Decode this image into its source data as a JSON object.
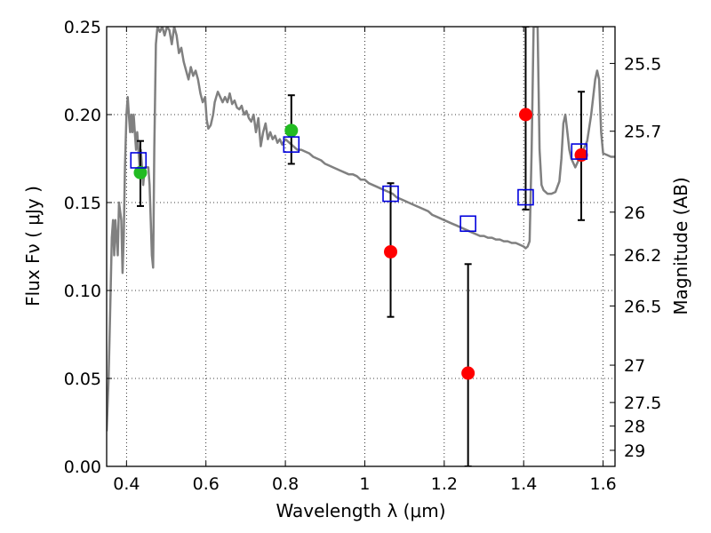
{
  "chart_data": {
    "type": "scatter",
    "xlabel": "Wavelength  λ (μm)",
    "ylabel": "Flux  Fν  ( μJy )",
    "y2label": "Magnitude (AB)",
    "xlim": [
      0.35,
      1.63
    ],
    "ylim": [
      0.0,
      0.25
    ],
    "grid": true,
    "x_ticks": [
      {
        "value": 0.4,
        "label": "0.4"
      },
      {
        "value": 0.6,
        "label": "0.6"
      },
      {
        "value": 0.8,
        "label": "0.8"
      },
      {
        "value": 1.0,
        "label": "1"
      },
      {
        "value": 1.2,
        "label": "1.2"
      },
      {
        "value": 1.4,
        "label": "1.4"
      },
      {
        "value": 1.6,
        "label": "1.6"
      }
    ],
    "y_ticks": [
      {
        "value": 0.0,
        "label": "0.00"
      },
      {
        "value": 0.05,
        "label": "0.05"
      },
      {
        "value": 0.1,
        "label": "0.10"
      },
      {
        "value": 0.15,
        "label": "0.15"
      },
      {
        "value": 0.2,
        "label": "0.20"
      },
      {
        "value": 0.25,
        "label": "0.25"
      }
    ],
    "y2_ticks": [
      {
        "mag": 25.5,
        "label": "25.5"
      },
      {
        "mag": 25.7,
        "label": "25.7"
      },
      {
        "mag": 26,
        "label": "26"
      },
      {
        "mag": 26.2,
        "label": "26.2"
      },
      {
        "mag": 26.5,
        "label": "26.5"
      },
      {
        "mag": 27,
        "label": "27"
      },
      {
        "mag": 27.5,
        "label": "27.5"
      },
      {
        "mag": 28,
        "label": "28"
      },
      {
        "mag": 29,
        "label": "29"
      }
    ],
    "template_sed": {
      "color": "#808080",
      "points": [
        [
          0.35,
          0.02
        ],
        [
          0.355,
          0.05
        ],
        [
          0.36,
          0.1
        ],
        [
          0.363,
          0.13
        ],
        [
          0.366,
          0.14
        ],
        [
          0.369,
          0.12
        ],
        [
          0.372,
          0.14
        ],
        [
          0.375,
          0.13
        ],
        [
          0.378,
          0.12
        ],
        [
          0.381,
          0.15
        ],
        [
          0.384,
          0.145
        ],
        [
          0.387,
          0.14
        ],
        [
          0.39,
          0.11
        ],
        [
          0.393,
          0.13
        ],
        [
          0.396,
          0.17
        ],
        [
          0.4,
          0.2
        ],
        [
          0.403,
          0.21
        ],
        [
          0.406,
          0.2
        ],
        [
          0.409,
          0.19
        ],
        [
          0.412,
          0.2
        ],
        [
          0.415,
          0.19
        ],
        [
          0.418,
          0.2
        ],
        [
          0.421,
          0.19
        ],
        [
          0.424,
          0.18
        ],
        [
          0.427,
          0.19
        ],
        [
          0.43,
          0.18
        ],
        [
          0.433,
          0.17
        ],
        [
          0.436,
          0.18
        ],
        [
          0.439,
          0.17
        ],
        [
          0.442,
          0.16
        ],
        [
          0.446,
          0.17
        ],
        [
          0.45,
          0.17
        ],
        [
          0.455,
          0.17
        ],
        [
          0.458,
          0.16
        ],
        [
          0.461,
          0.14
        ],
        [
          0.464,
          0.12
        ],
        [
          0.467,
          0.113
        ],
        [
          0.47,
          0.18
        ],
        [
          0.474,
          0.24
        ],
        [
          0.478,
          0.25
        ],
        [
          0.484,
          0.247
        ],
        [
          0.49,
          0.25
        ],
        [
          0.496,
          0.245
        ],
        [
          0.502,
          0.25
        ],
        [
          0.508,
          0.248
        ],
        [
          0.514,
          0.24
        ],
        [
          0.52,
          0.25
        ],
        [
          0.526,
          0.245
        ],
        [
          0.532,
          0.235
        ],
        [
          0.538,
          0.238
        ],
        [
          0.544,
          0.23
        ],
        [
          0.55,
          0.225
        ],
        [
          0.556,
          0.22
        ],
        [
          0.562,
          0.227
        ],
        [
          0.568,
          0.222
        ],
        [
          0.574,
          0.225
        ],
        [
          0.58,
          0.22
        ],
        [
          0.586,
          0.212
        ],
        [
          0.592,
          0.207
        ],
        [
          0.598,
          0.21
        ],
        [
          0.602,
          0.197
        ],
        [
          0.606,
          0.192
        ],
        [
          0.612,
          0.194
        ],
        [
          0.618,
          0.2
        ],
        [
          0.622,
          0.207
        ],
        [
          0.626,
          0.21
        ],
        [
          0.63,
          0.213
        ],
        [
          0.636,
          0.21
        ],
        [
          0.642,
          0.207
        ],
        [
          0.648,
          0.21
        ],
        [
          0.654,
          0.207
        ],
        [
          0.66,
          0.212
        ],
        [
          0.666,
          0.206
        ],
        [
          0.672,
          0.208
        ],
        [
          0.678,
          0.204
        ],
        [
          0.684,
          0.203
        ],
        [
          0.69,
          0.205
        ],
        [
          0.696,
          0.2
        ],
        [
          0.702,
          0.202
        ],
        [
          0.708,
          0.198
        ],
        [
          0.714,
          0.196
        ],
        [
          0.72,
          0.2
        ],
        [
          0.726,
          0.19
        ],
        [
          0.732,
          0.198
        ],
        [
          0.738,
          0.182
        ],
        [
          0.744,
          0.19
        ],
        [
          0.75,
          0.195
        ],
        [
          0.756,
          0.186
        ],
        [
          0.762,
          0.19
        ],
        [
          0.768,
          0.186
        ],
        [
          0.774,
          0.188
        ],
        [
          0.78,
          0.184
        ],
        [
          0.786,
          0.186
        ],
        [
          0.792,
          0.183
        ],
        [
          0.8,
          0.186
        ],
        [
          0.81,
          0.184
        ],
        [
          0.82,
          0.182
        ],
        [
          0.83,
          0.18
        ],
        [
          0.84,
          0.18
        ],
        [
          0.85,
          0.179
        ],
        [
          0.86,
          0.178
        ],
        [
          0.87,
          0.176
        ],
        [
          0.88,
          0.175
        ],
        [
          0.89,
          0.174
        ],
        [
          0.9,
          0.172
        ],
        [
          0.91,
          0.171
        ],
        [
          0.92,
          0.17
        ],
        [
          0.93,
          0.169
        ],
        [
          0.94,
          0.168
        ],
        [
          0.95,
          0.167
        ],
        [
          0.96,
          0.166
        ],
        [
          0.97,
          0.166
        ],
        [
          0.98,
          0.165
        ],
        [
          0.99,
          0.163
        ],
        [
          1.0,
          0.163
        ],
        [
          1.01,
          0.161
        ],
        [
          1.02,
          0.16
        ],
        [
          1.03,
          0.159
        ],
        [
          1.04,
          0.158
        ],
        [
          1.05,
          0.157
        ],
        [
          1.06,
          0.156
        ],
        [
          1.07,
          0.155
        ],
        [
          1.08,
          0.153
        ],
        [
          1.09,
          0.152
        ],
        [
          1.1,
          0.151
        ],
        [
          1.11,
          0.15
        ],
        [
          1.12,
          0.149
        ],
        [
          1.13,
          0.148
        ],
        [
          1.14,
          0.147
        ],
        [
          1.15,
          0.146
        ],
        [
          1.16,
          0.145
        ],
        [
          1.17,
          0.143
        ],
        [
          1.18,
          0.142
        ],
        [
          1.19,
          0.141
        ],
        [
          1.2,
          0.14
        ],
        [
          1.21,
          0.139
        ],
        [
          1.22,
          0.138
        ],
        [
          1.23,
          0.137
        ],
        [
          1.24,
          0.136
        ],
        [
          1.25,
          0.135
        ],
        [
          1.26,
          0.134
        ],
        [
          1.27,
          0.133
        ],
        [
          1.28,
          0.132
        ],
        [
          1.29,
          0.131
        ],
        [
          1.3,
          0.131
        ],
        [
          1.31,
          0.13
        ],
        [
          1.32,
          0.13
        ],
        [
          1.33,
          0.129
        ],
        [
          1.34,
          0.129
        ],
        [
          1.35,
          0.128
        ],
        [
          1.36,
          0.128
        ],
        [
          1.37,
          0.127
        ],
        [
          1.38,
          0.127
        ],
        [
          1.39,
          0.126
        ],
        [
          1.4,
          0.125
        ],
        [
          1.405,
          0.124
        ],
        [
          1.41,
          0.125
        ],
        [
          1.415,
          0.128
        ],
        [
          1.42,
          0.18
        ],
        [
          1.425,
          0.25
        ],
        [
          1.43,
          0.25
        ],
        [
          1.435,
          0.25
        ],
        [
          1.44,
          0.18
        ],
        [
          1.445,
          0.16
        ],
        [
          1.45,
          0.157
        ],
        [
          1.46,
          0.155
        ],
        [
          1.47,
          0.155
        ],
        [
          1.48,
          0.156
        ],
        [
          1.49,
          0.162
        ],
        [
          1.495,
          0.175
        ],
        [
          1.5,
          0.195
        ],
        [
          1.505,
          0.2
        ],
        [
          1.51,
          0.19
        ],
        [
          1.515,
          0.18
        ],
        [
          1.52,
          0.175
        ],
        [
          1.53,
          0.17
        ],
        [
          1.54,
          0.175
        ],
        [
          1.55,
          0.18
        ],
        [
          1.56,
          0.185
        ],
        [
          1.57,
          0.2
        ],
        [
          1.58,
          0.22
        ],
        [
          1.585,
          0.225
        ],
        [
          1.59,
          0.22
        ],
        [
          1.595,
          0.19
        ],
        [
          1.6,
          0.178
        ],
        [
          1.61,
          0.177
        ],
        [
          1.62,
          0.176
        ],
        [
          1.63,
          0.176
        ]
      ]
    },
    "series": [
      {
        "marker": "circle",
        "color": "#22bb22",
        "points": [
          {
            "x": 0.435,
            "y": 0.167,
            "ylo": 0.148,
            "yhi": 0.185
          },
          {
            "x": 0.815,
            "y": 0.191,
            "ylo": 0.172,
            "yhi": 0.211
          }
        ]
      },
      {
        "marker": "circle",
        "color": "#ff0000",
        "points": [
          {
            "x": 1.065,
            "y": 0.122,
            "ylo": 0.085,
            "yhi": 0.161
          },
          {
            "x": 1.26,
            "y": 0.053,
            "ylo": 0.0,
            "yhi": 0.115
          },
          {
            "x": 1.405,
            "y": 0.2,
            "ylo": 0.146,
            "yhi": 0.25
          },
          {
            "x": 1.545,
            "y": 0.177,
            "ylo": 0.14,
            "yhi": 0.213
          }
        ]
      },
      {
        "marker": "square",
        "color": "#0000dd",
        "points": [
          {
            "x": 0.43,
            "y": 0.174
          },
          {
            "x": 0.815,
            "y": 0.183
          },
          {
            "x": 1.065,
            "y": 0.155
          },
          {
            "x": 1.26,
            "y": 0.138
          },
          {
            "x": 1.405,
            "y": 0.153
          },
          {
            "x": 1.54,
            "y": 0.179
          }
        ]
      }
    ]
  }
}
